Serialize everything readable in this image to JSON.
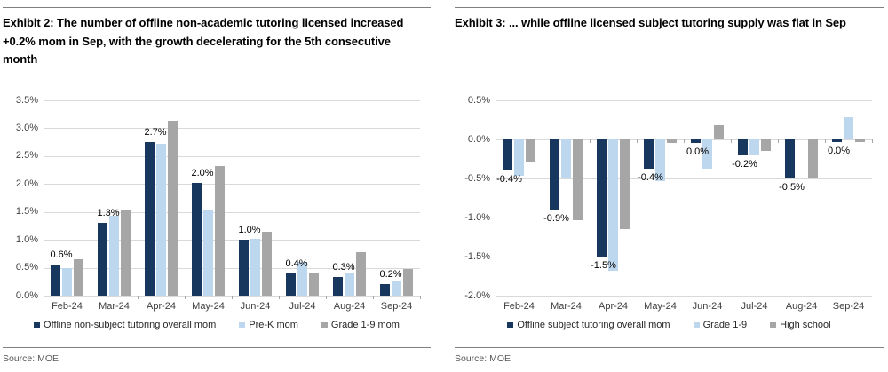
{
  "chart_data": [
    {
      "type": "bar",
      "title": "Exhibit 2: The number of offline non-academic tutoring licensed increased +0.2% mom in Sep, with the growth decelerating for the 5th consecutive month",
      "source": "Source: MOE",
      "categories": [
        "Feb-24",
        "Mar-24",
        "Apr-24",
        "May-24",
        "Jun-24",
        "Jul-24",
        "Aug-24",
        "Sep-24"
      ],
      "series": [
        {
          "name": "Offline non-subject tutoring overall mom",
          "color": "#17375E",
          "values": [
            0.55,
            1.3,
            2.75,
            2.02,
            1.0,
            0.4,
            0.33,
            0.2
          ]
        },
        {
          "name": "Pre-K mom",
          "color": "#BDD7EE",
          "values": [
            0.5,
            1.43,
            2.72,
            1.53,
            1.02,
            0.6,
            0.4,
            0.27
          ]
        },
        {
          "name": "Grade 1-9 mom",
          "color": "#A6A6A6",
          "values": [
            0.65,
            1.52,
            3.13,
            2.33,
            1.15,
            0.42,
            0.78,
            0.47
          ]
        }
      ],
      "data_labels": [
        "0.6%",
        "1.3%",
        "2.7%",
        "2.0%",
        "1.0%",
        "0.4%",
        "0.3%",
        "0.2%"
      ],
      "label_position": "above",
      "ylim": [
        0,
        3.5
      ],
      "ytick_step": 0.5,
      "grid": true,
      "legend_position": "bottom",
      "xlabel": "",
      "ylabel": ""
    },
    {
      "type": "bar",
      "title": "Exhibit 3: ... while offline licensed subject tutoring supply was flat in Sep",
      "source": "Source: MOE",
      "categories": [
        "Feb-24",
        "Mar-24",
        "Apr-24",
        "May-24",
        "Jun-24",
        "Jul-24",
        "Aug-24",
        "Sep-24"
      ],
      "series": [
        {
          "name": "Offline subject tutoring overall mom",
          "color": "#17375E",
          "values": [
            -0.4,
            -0.9,
            -1.5,
            -0.37,
            -0.05,
            -0.2,
            -0.5,
            -0.03
          ]
        },
        {
          "name": "Grade 1-9",
          "color": "#BDD7EE",
          "values": [
            -0.47,
            -0.5,
            -1.68,
            -0.53,
            -0.37,
            -0.2,
            0,
            0.28
          ]
        },
        {
          "name": "High school",
          "color": "#A6A6A6",
          "values": [
            -0.3,
            -1.03,
            -1.15,
            -0.05,
            0.18,
            -0.15,
            -0.5,
            -0.03
          ]
        }
      ],
      "data_labels": [
        "-0.4%",
        "-0.9%",
        "-1.5%",
        "-0.4%",
        "0.0%",
        "-0.2%",
        "-0.5%",
        "0.0%"
      ],
      "label_position": "below",
      "ylim": [
        -2.0,
        0.5
      ],
      "ytick_step": 0.5,
      "grid": true,
      "legend_position": "bottom",
      "xlabel": "",
      "ylabel": ""
    }
  ]
}
